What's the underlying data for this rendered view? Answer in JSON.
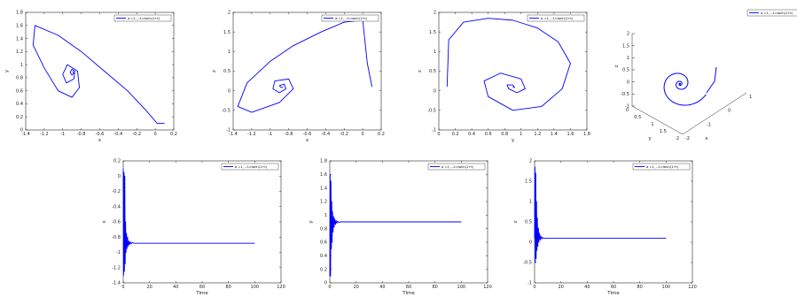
{
  "colors": {
    "series": "#0000ff",
    "axes": "#262626",
    "background": "#ffffff"
  },
  "chart_data": [
    {
      "id": "xy",
      "type": "line",
      "legend_label": "α =1, ..λ=tanh(1+t)",
      "xlabel": "x",
      "ylabel": "y",
      "xlim": [
        -1.4,
        0.2
      ],
      "ylim": [
        0,
        1.8
      ],
      "xticks": [
        -1.4,
        -1.2,
        -1,
        -0.8,
        -0.6,
        -0.4,
        -0.2,
        0,
        0.2
      ],
      "yticks": [
        0,
        0.2,
        0.4,
        0.6,
        0.8,
        1,
        1.2,
        1.4,
        1.6,
        1.8
      ],
      "xticklabels": [
        "-1.4",
        "-1.2",
        "-1",
        "-0.8",
        "-0.6",
        "-0.4",
        "-0.2",
        "0",
        "0.2"
      ],
      "yticklabels": [
        "0",
        "0.2",
        "0.4",
        "0.6",
        "0.8",
        "1",
        "1.2",
        "1.4",
        "1.6",
        "1.8"
      ],
      "x": [
        0.1,
        0.02,
        -0.1,
        -0.3,
        -0.55,
        -0.8,
        -1.05,
        -1.3,
        -1.32,
        -1.2,
        -1.05,
        -0.9,
        -0.82,
        -0.84,
        -0.95,
        -1.0,
        -0.96,
        -0.88,
        -0.87,
        -0.9,
        -0.92,
        -0.9,
        -0.88,
        -0.89
      ],
      "y": [
        0.1,
        0.1,
        0.3,
        0.6,
        0.9,
        1.2,
        1.45,
        1.6,
        1.3,
        0.95,
        0.6,
        0.5,
        0.65,
        0.9,
        1.0,
        0.85,
        0.72,
        0.78,
        0.9,
        0.93,
        0.88,
        0.84,
        0.87,
        0.9
      ]
    },
    {
      "id": "xz",
      "type": "line",
      "legend_label": "α =1, ..λ=tanh(1+t)",
      "xlabel": "x",
      "ylabel": "z",
      "xlim": [
        -1.4,
        0.2
      ],
      "ylim": [
        -1,
        2
      ],
      "xticks": [
        -1.4,
        -1.2,
        -1,
        -0.8,
        -0.6,
        -0.4,
        -0.2,
        0,
        0.2
      ],
      "yticks": [
        -1,
        -0.5,
        0,
        0.5,
        1,
        1.5,
        2
      ],
      "xticklabels": [
        "-1.4",
        "-1.2",
        "-1",
        "-0.8",
        "-0.6",
        "-0.4",
        "-0.2",
        "0",
        "0.2"
      ],
      "yticklabels": [
        "-1",
        "-0.5",
        "0",
        "0.5",
        "1",
        "1.5",
        "2"
      ],
      "x": [
        0.1,
        0.05,
        0.0,
        -0.2,
        -0.45,
        -0.75,
        -1.0,
        -1.25,
        -1.35,
        -1.2,
        -0.9,
        -0.75,
        -0.8,
        -0.95,
        -0.97,
        -0.9,
        -0.83,
        -0.85,
        -0.9,
        -0.88,
        -0.86
      ],
      "y": [
        0.1,
        0.7,
        1.8,
        1.75,
        1.5,
        1.15,
        0.75,
        0.2,
        -0.4,
        -0.55,
        -0.3,
        0.05,
        0.3,
        0.25,
        0.05,
        -0.05,
        0.05,
        0.17,
        0.13,
        0.08,
        0.1
      ]
    },
    {
      "id": "yz",
      "type": "line",
      "legend_label": "α =1, ..λ=tanh(1+t)",
      "xlabel": "y",
      "ylabel": "z",
      "xlim": [
        0,
        1.8
      ],
      "ylim": [
        -1,
        2
      ],
      "xticks": [
        0,
        0.2,
        0.4,
        0.6,
        0.8,
        1,
        1.2,
        1.4,
        1.6,
        1.8
      ],
      "yticks": [
        -1,
        -0.5,
        0,
        0.5,
        1,
        1.5,
        2
      ],
      "xticklabels": [
        "0",
        "0.2",
        "0.4",
        "0.6",
        "0.8",
        "1",
        "1.2",
        "1.4",
        "1.6",
        "1.8"
      ],
      "yticklabels": [
        "-1",
        "-0.5",
        "0",
        "0.5",
        "1",
        "1.5",
        "2"
      ],
      "x": [
        0.1,
        0.12,
        0.3,
        0.6,
        0.9,
        1.2,
        1.45,
        1.6,
        1.5,
        1.25,
        0.9,
        0.6,
        0.55,
        0.75,
        1.0,
        1.05,
        0.95,
        0.85,
        0.83,
        0.9,
        0.92,
        0.9
      ],
      "y": [
        0.1,
        1.3,
        1.75,
        1.85,
        1.8,
        1.6,
        1.25,
        0.7,
        0.05,
        -0.4,
        -0.5,
        -0.15,
        0.25,
        0.45,
        0.3,
        0.05,
        -0.05,
        0.05,
        0.15,
        0.15,
        0.08,
        0.1
      ]
    },
    {
      "id": "xyz",
      "type": "line3d",
      "legend_label": "α =1, ..λ=tanh(1+t)",
      "xlabel": "x",
      "ylabel": "y",
      "zlabel": "z",
      "zticklabels": [
        "-1",
        "-0.5",
        "0",
        "0.5",
        "1",
        "1.5",
        "2"
      ],
      "yticklabels": [
        "0",
        "0.5",
        "1",
        "1.5",
        "2"
      ],
      "xticklabels": [
        "-2",
        "-1",
        "0",
        "1"
      ]
    },
    {
      "id": "tx",
      "type": "line",
      "legend_label": "α =1, ..λ=tanh(1+t)",
      "xlabel": "Time",
      "ylabel": "x",
      "xlim": [
        0,
        120
      ],
      "ylim": [
        -1.4,
        0.2
      ],
      "xticks": [
        0,
        20,
        40,
        60,
        80,
        100,
        120
      ],
      "yticks": [
        -1.4,
        -1.2,
        -1,
        -0.8,
        -0.6,
        -0.4,
        -0.2,
        0,
        0.2
      ],
      "xticklabels": [
        "0",
        "20",
        "40",
        "60",
        "80",
        "100",
        "120"
      ],
      "yticklabels": [
        "-1.4",
        "-1.2",
        "-1",
        "-0.8",
        "-0.6",
        "-0.4",
        "-0.2",
        "0",
        "0.2"
      ],
      "x": [
        0,
        0.3,
        0.6,
        0.9,
        1.2,
        1.5,
        1.8,
        2.1,
        2.5,
        2.9,
        3.3,
        3.8,
        4.3,
        4.8,
        5.4,
        6,
        7,
        8,
        10,
        100
      ],
      "y": [
        0.1,
        -1.3,
        0.05,
        -1.25,
        0.0,
        -1.15,
        -0.6,
        -1.0,
        -0.75,
        -0.95,
        -0.8,
        -0.92,
        -0.85,
        -0.9,
        -0.86,
        -0.89,
        -0.87,
        -0.88,
        -0.88,
        -0.88
      ]
    },
    {
      "id": "ty",
      "type": "line",
      "legend_label": "α =1, ..λ=tanh(1+t)",
      "xlabel": "Time",
      "ylabel": "y",
      "xlim": [
        0,
        120
      ],
      "ylim": [
        0,
        1.8
      ],
      "xticks": [
        0,
        20,
        40,
        60,
        80,
        100,
        120
      ],
      "yticks": [
        0,
        0.2,
        0.4,
        0.6,
        0.8,
        1,
        1.2,
        1.4,
        1.6,
        1.8
      ],
      "xticklabels": [
        "0",
        "20",
        "40",
        "60",
        "80",
        "100",
        "120"
      ],
      "yticklabels": [
        "0",
        "0.2",
        "0.4",
        "0.6",
        "0.8",
        "1",
        "1.2",
        "1.4",
        "1.6",
        "1.8"
      ],
      "x": [
        0,
        0.3,
        0.6,
        0.9,
        1.2,
        1.5,
        1.8,
        2.1,
        2.5,
        2.9,
        3.3,
        3.8,
        4.3,
        4.8,
        5.4,
        6,
        7,
        8,
        10,
        100
      ],
      "y": [
        0.1,
        1.6,
        0.1,
        1.5,
        0.5,
        1.2,
        0.6,
        1.05,
        0.75,
        0.98,
        0.82,
        0.95,
        0.86,
        0.92,
        0.88,
        0.91,
        0.89,
        0.9,
        0.9,
        0.9
      ]
    },
    {
      "id": "tz",
      "type": "line",
      "legend_label": "α =1, ..λ=tanh(1+t)",
      "xlabel": "Time",
      "ylabel": "z",
      "xlim": [
        0,
        120
      ],
      "ylim": [
        -1,
        2
      ],
      "xticks": [
        0,
        20,
        40,
        60,
        80,
        100,
        120
      ],
      "yticks": [
        -1,
        -0.5,
        0,
        0.5,
        1,
        1.5,
        2
      ],
      "xticklabels": [
        "0",
        "20",
        "40",
        "60",
        "80",
        "100",
        "120"
      ],
      "yticklabels": [
        "-1",
        "-0.5",
        "0",
        "0.5",
        "1",
        "1.5",
        "2"
      ],
      "x": [
        0,
        0.3,
        0.6,
        0.9,
        1.2,
        1.5,
        1.8,
        2.1,
        2.5,
        2.9,
        3.3,
        3.8,
        4.3,
        4.8,
        5.4,
        6,
        7,
        8,
        10,
        100
      ],
      "y": [
        0.1,
        1.85,
        -0.5,
        1.7,
        -0.4,
        1.0,
        -0.2,
        0.6,
        -0.1,
        0.35,
        0.0,
        0.22,
        0.05,
        0.15,
        0.08,
        0.12,
        0.09,
        0.1,
        0.1,
        0.1
      ]
    }
  ]
}
